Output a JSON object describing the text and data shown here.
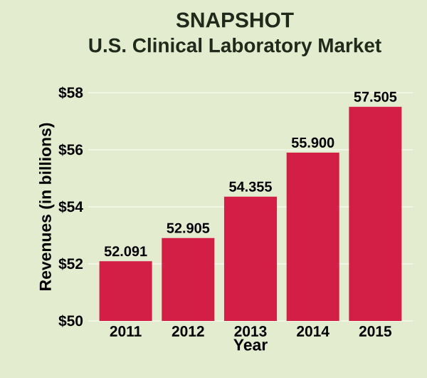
{
  "chart_data": {
    "type": "bar",
    "title": "SNAPSHOT",
    "subtitle": "U.S. Clinical Laboratory Market",
    "xlabel": "Year",
    "ylabel": "Revenues (in billions)",
    "categories": [
      "2011",
      "2012",
      "2013",
      "2014",
      "2015"
    ],
    "values": [
      52.091,
      52.905,
      54.355,
      55.9,
      57.505
    ],
    "value_labels": [
      "52.091",
      "52.905",
      "54.355",
      "55.900",
      "57.505"
    ],
    "color": "#d31f45",
    "ylim": [
      50,
      58
    ],
    "yticks": [
      {
        "value": 50,
        "label": "$50"
      },
      {
        "value": 52,
        "label": "$52"
      },
      {
        "value": 54,
        "label": "$54"
      },
      {
        "value": 56,
        "label": "$56"
      },
      {
        "value": 58,
        "label": "$58"
      }
    ],
    "grid": "y"
  }
}
